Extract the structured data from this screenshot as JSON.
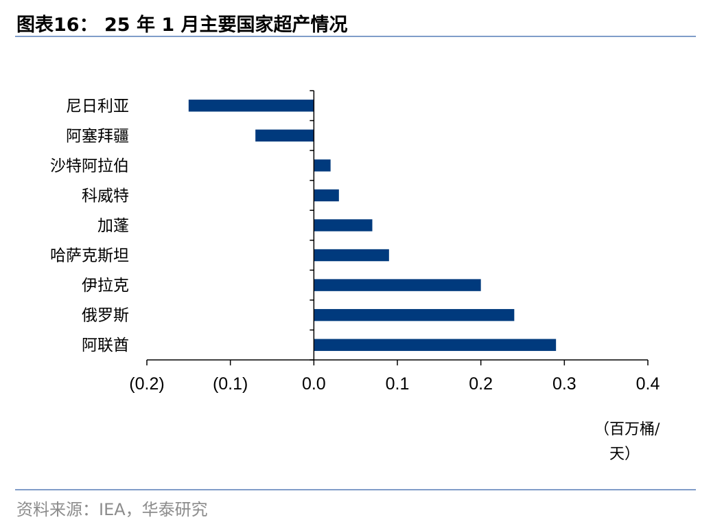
{
  "header": {
    "title": "图表16： 25 年 1 月主要国家超产情况"
  },
  "footer": {
    "source": "资料来源：IEA，华泰研究"
  },
  "colors": {
    "bar": "#003a7d",
    "rule": "#7f9cc8"
  },
  "chart_data": {
    "type": "bar",
    "orientation": "horizontal",
    "categories": [
      "尼日利亚",
      "阿塞拜疆",
      "沙特阿拉伯",
      "科威特",
      "加蓬",
      "哈萨克斯坦",
      "伊拉克",
      "俄罗斯",
      "阿联酋"
    ],
    "values": [
      -0.15,
      -0.07,
      0.02,
      0.03,
      0.07,
      0.09,
      0.2,
      0.24,
      0.29
    ],
    "xlim": [
      -0.2,
      0.4
    ],
    "xticks": [
      -0.2,
      -0.1,
      0.0,
      0.1,
      0.2,
      0.3,
      0.4
    ],
    "xtick_labels": [
      "(0.2)",
      "(0.1)",
      "0.0",
      "0.1",
      "0.2",
      "0.3",
      "0.4"
    ],
    "unit_label_lines": [
      "（百万桶/",
      "天）"
    ],
    "grid": false,
    "legend": "none"
  }
}
